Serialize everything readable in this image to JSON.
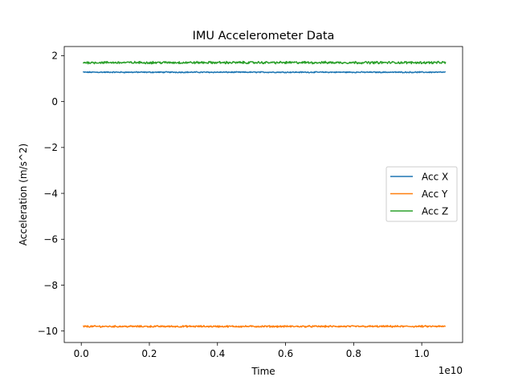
{
  "chart_data": {
    "type": "line",
    "title": "IMU Accelerometer Data",
    "xlabel": "Time",
    "ylabel": "Acceleration (m/s^2)",
    "x_offset_label": "1e10",
    "xlim": [
      -0.05,
      1.12
    ],
    "ylim": [
      -10.5,
      2.4
    ],
    "x_ticks": [
      0.0,
      0.2,
      0.4,
      0.6,
      0.8,
      1.0
    ],
    "x_tick_labels": [
      "0.0",
      "0.2",
      "0.4",
      "0.6",
      "0.8",
      "1.0"
    ],
    "y_ticks": [
      2,
      0,
      -2,
      -4,
      -6,
      -8,
      -10
    ],
    "y_tick_labels": [
      "2",
      "0",
      "−2",
      "−4",
      "−6",
      "−8",
      "−10"
    ],
    "x_range": [
      0.005,
      1.07
    ],
    "legend_position": "center-right",
    "series": [
      {
        "name": "Acc X",
        "color": "#1f77b4",
        "values": [
          1.28,
          1.28,
          1.28,
          1.28,
          1.28,
          1.28
        ]
      },
      {
        "name": "Acc Y",
        "color": "#ff7f0e",
        "values": [
          -9.8,
          -9.8,
          -9.8,
          -9.8,
          -9.8,
          -9.8
        ]
      },
      {
        "name": "Acc Z",
        "color": "#2ca02c",
        "values": [
          1.7,
          1.7,
          1.7,
          1.7,
          1.7,
          1.7
        ]
      }
    ],
    "noise_amplitude": [
      0.02,
      0.03,
      0.04
    ]
  }
}
